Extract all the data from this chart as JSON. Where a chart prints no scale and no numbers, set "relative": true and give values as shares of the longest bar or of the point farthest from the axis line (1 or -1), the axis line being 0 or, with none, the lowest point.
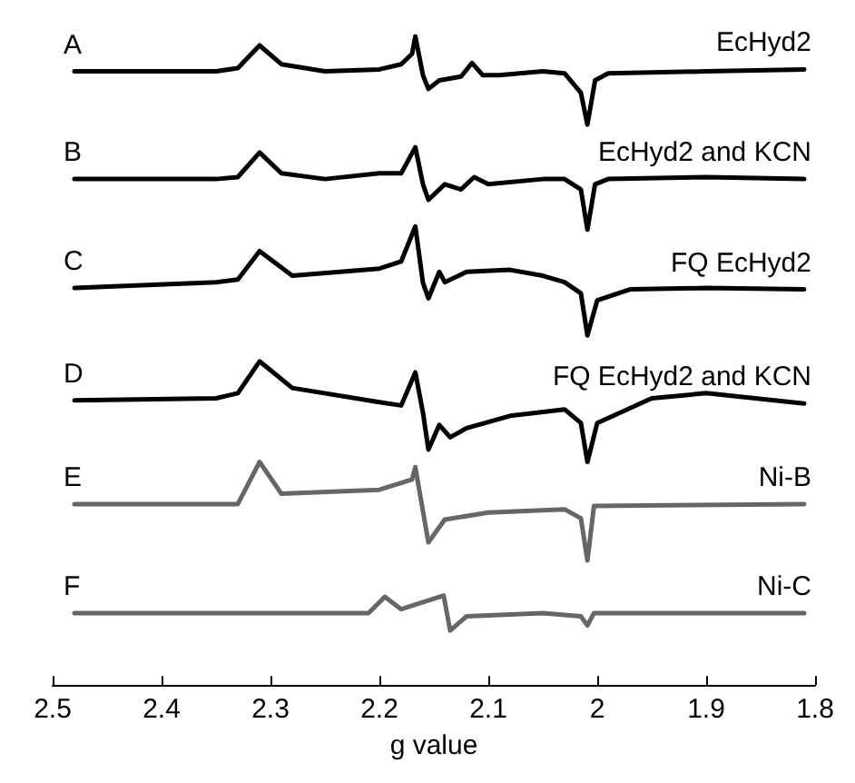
{
  "chart_data": {
    "type": "line",
    "relative": true,
    "xlabel": "g value",
    "xlim": [
      2.5,
      1.8
    ],
    "xticks": [
      2.5,
      2.4,
      2.3,
      2.2,
      2.1,
      2,
      1.9,
      1.8
    ],
    "grid": false,
    "legend": false,
    "marker": "none",
    "line_style": "solid",
    "annotations": [
      "A",
      "B",
      "C",
      "D",
      "E",
      "F"
    ],
    "series": [
      {
        "name": "EcHyd2",
        "color": "#000000",
        "x": [
          2.48,
          2.35,
          2.33,
          2.31,
          2.29,
          2.25,
          2.2,
          2.18,
          2.17,
          2.167,
          2.16,
          2.155,
          2.145,
          2.125,
          2.115,
          2.105,
          2.09,
          2.05,
          2.03,
          2.015,
          2.009,
          2.002,
          1.99,
          1.9,
          1.81
        ],
        "values": [
          0.946,
          0.946,
          0.951,
          0.986,
          0.957,
          0.946,
          0.949,
          0.957,
          0.973,
          1,
          0.94,
          0.919,
          0.932,
          0.938,
          0.959,
          0.94,
          0.94,
          0.946,
          0.943,
          0.913,
          0.864,
          0.932,
          0.943,
          0.946,
          0.949
        ]
      },
      {
        "name": "EcHyd2 and KCN",
        "color": "#000000",
        "x": [
          2.48,
          2.35,
          2.33,
          2.31,
          2.29,
          2.25,
          2.2,
          2.18,
          2.167,
          2.16,
          2.155,
          2.14,
          2.125,
          2.113,
          2.1,
          2.05,
          2.03,
          2.015,
          2.009,
          2.002,
          1.99,
          1.9,
          1.81
        ],
        "values": [
          0.78,
          0.78,
          0.783,
          0.821,
          0.789,
          0.78,
          0.789,
          0.789,
          0.829,
          0.772,
          0.748,
          0.772,
          0.764,
          0.783,
          0.772,
          0.78,
          0.78,
          0.764,
          0.702,
          0.772,
          0.78,
          0.783,
          0.78
        ]
      },
      {
        "name": "FQ EcHyd2",
        "color": "#000000",
        "x": [
          2.48,
          2.35,
          2.33,
          2.31,
          2.28,
          2.2,
          2.18,
          2.167,
          2.16,
          2.155,
          2.145,
          2.14,
          2.12,
          2.08,
          2.05,
          2.03,
          2.015,
          2.009,
          2.0,
          1.97,
          1.9,
          1.81
        ],
        "values": [
          0.612,
          0.621,
          0.625,
          0.669,
          0.631,
          0.642,
          0.653,
          0.707,
          0.62,
          0.596,
          0.637,
          0.621,
          0.637,
          0.64,
          0.631,
          0.621,
          0.604,
          0.539,
          0.593,
          0.61,
          0.612,
          0.61
        ]
      },
      {
        "name": "FQ EcHyd2 and KCN",
        "color": "#000000",
        "x": [
          2.48,
          2.35,
          2.33,
          2.31,
          2.28,
          2.2,
          2.18,
          2.167,
          2.16,
          2.155,
          2.145,
          2.135,
          2.12,
          2.08,
          2.03,
          2.015,
          2.009,
          2.0,
          1.95,
          1.9,
          1.81
        ],
        "values": [
          0.439,
          0.442,
          0.45,
          0.499,
          0.458,
          0.436,
          0.431,
          0.482,
          0.42,
          0.363,
          0.401,
          0.382,
          0.396,
          0.415,
          0.425,
          0.404,
          0.344,
          0.404,
          0.442,
          0.45,
          0.434
        ]
      },
      {
        "name": "Ni-B",
        "color": "#666666",
        "x": [
          2.48,
          2.33,
          2.31,
          2.29,
          2.2,
          2.17,
          2.167,
          2.16,
          2.155,
          2.14,
          2.1,
          2.03,
          2.015,
          2.009,
          2.003,
          1.81
        ],
        "values": [
          0.279,
          0.279,
          0.344,
          0.295,
          0.301,
          0.317,
          0.336,
          0.268,
          0.22,
          0.255,
          0.266,
          0.271,
          0.257,
          0.192,
          0.276,
          0.279
        ]
      },
      {
        "name": "Ni-C",
        "color": "#666666",
        "x": [
          2.48,
          2.21,
          2.195,
          2.18,
          2.141,
          2.135,
          2.12,
          2.05,
          2.015,
          2.009,
          2.003,
          1.81
        ],
        "values": [
          0.111,
          0.111,
          0.136,
          0.117,
          0.138,
          0.084,
          0.106,
          0.111,
          0.106,
          0.092,
          0.111,
          0.111
        ]
      }
    ]
  }
}
